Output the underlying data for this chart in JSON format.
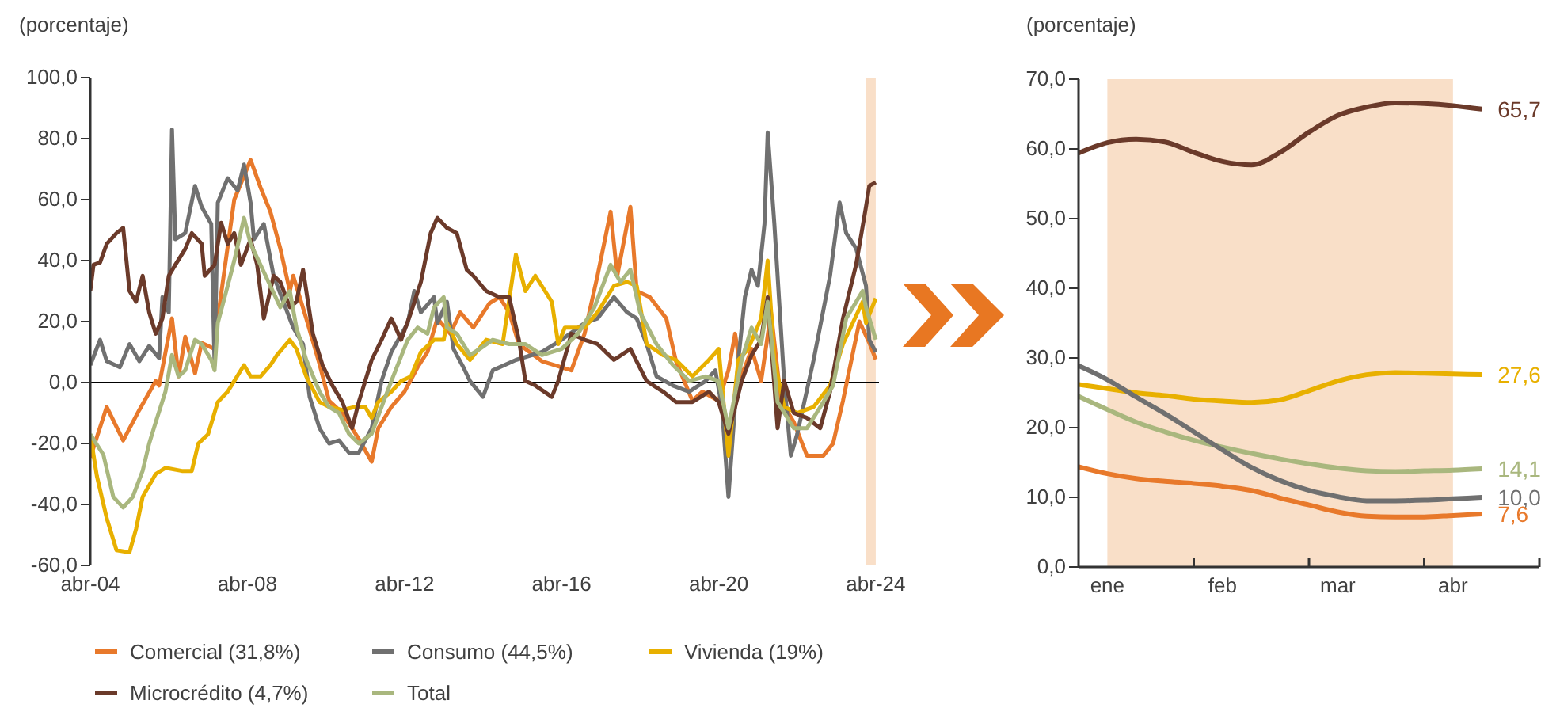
{
  "chart_data": [
    {
      "type": "line",
      "ylabel": "(porcentaje)",
      "xlim": [
        "2004-04",
        "2024-05"
      ],
      "xticks": [
        {
          "value": "2004-04",
          "label": "abr-04"
        },
        {
          "value": "2008-04",
          "label": "abr-08"
        },
        {
          "value": "2012-04",
          "label": "abr-12"
        },
        {
          "value": "2016-04",
          "label": "abr-16"
        },
        {
          "value": "2020-04",
          "label": "abr-20"
        },
        {
          "value": "2024-04",
          "label": "abr-24"
        }
      ],
      "ylim": [
        -60,
        100
      ],
      "yticks": [
        {
          "value": -60,
          "label": "-60,0"
        },
        {
          "value": -40,
          "label": "-40,0"
        },
        {
          "value": -20,
          "label": "-20,0"
        },
        {
          "value": 0,
          "label": "0,0"
        },
        {
          "value": 20,
          "label": "20,0"
        },
        {
          "value": 40,
          "label": "40,0"
        },
        {
          "value": 60,
          "label": "60,0"
        },
        {
          "value": 80,
          "label": "80,0"
        },
        {
          "value": 100,
          "label": "100,0"
        }
      ],
      "grid": false,
      "legend": "bottom",
      "ref_lines": [
        {
          "axis": "y",
          "value": 0,
          "color": "#000000"
        }
      ],
      "bands": [
        {
          "axis": "x",
          "from": "2024-01",
          "to": "2024-04",
          "color": "#f9dfc8"
        }
      ],
      "series": [
        {
          "name": "Comercial (31,8%)",
          "color": "#e8792b",
          "x": [
            "2004-04",
            "2004-09",
            "2005-02",
            "2005-07",
            "2005-12",
            "2006-01",
            "2006-05",
            "2006-07",
            "2006-09",
            "2006-12",
            "2007-02",
            "2007-06",
            "2007-07",
            "2007-09",
            "2007-12",
            "2008-05",
            "2008-08",
            "2008-11",
            "2009-02",
            "2009-05",
            "2009-06",
            "2009-10",
            "2010-02",
            "2010-05",
            "2010-09",
            "2011-02",
            "2011-06",
            "2011-08",
            "2011-12",
            "2012-04",
            "2012-08",
            "2012-11",
            "2013-02",
            "2013-06",
            "2013-09",
            "2014-01",
            "2014-06",
            "2014-09",
            "2014-12",
            "2015-03",
            "2015-10",
            "2016-07",
            "2016-11",
            "2017-03",
            "2017-07",
            "2017-09",
            "2018-01",
            "2018-03",
            "2018-07",
            "2018-12",
            "2019-03",
            "2019-08",
            "2019-11",
            "2020-04",
            "2020-07",
            "2020-09",
            "2020-11",
            "2021-02",
            "2021-05",
            "2021-08",
            "2021-11",
            "2022-03",
            "2022-07",
            "2022-12",
            "2023-03",
            "2023-06",
            "2023-11",
            "2024-02",
            "2024-04"
          ],
          "values": [
            -24.6,
            -8,
            -19,
            -9,
            0.5,
            -1,
            21,
            2,
            15,
            3,
            13,
            11,
            21,
            37,
            60,
            73,
            64,
            56,
            44,
            30,
            35,
            21,
            6,
            -6,
            -10,
            -18.5,
            -26,
            -15,
            -8,
            -3,
            5,
            10,
            21,
            16,
            23,
            18,
            26,
            28,
            23,
            12.6,
            7,
            4,
            16,
            35,
            56,
            35,
            57.6,
            30,
            28,
            21,
            7,
            -6,
            -3,
            -6,
            4,
            16,
            2,
            11,
            0.5,
            23,
            -6,
            -13,
            -24,
            -24,
            -20,
            -6,
            20,
            13,
            7.6
          ]
        },
        {
          "name": "Consumo (44,5%)",
          "color": "#707070",
          "x": [
            "2004-04",
            "2004-07",
            "2004-09",
            "2005-01",
            "2005-04",
            "2005-07",
            "2005-10",
            "2006-01",
            "2006-02",
            "2006-04",
            "2006-05",
            "2006-06",
            "2006-09",
            "2006-12",
            "2007-02",
            "2007-05",
            "2007-06",
            "2007-07",
            "2007-10",
            "2008-01",
            "2008-03",
            "2008-05",
            "2008-06",
            "2008-09",
            "2008-12",
            "2009-03",
            "2009-06",
            "2009-09",
            "2009-11",
            "2010-02",
            "2010-05",
            "2010-08",
            "2010-11",
            "2011-02",
            "2011-06",
            "2011-09",
            "2011-12",
            "2012-05",
            "2012-07",
            "2012-09",
            "2013-01",
            "2013-02",
            "2013-05",
            "2013-07",
            "2013-10",
            "2013-12",
            "2014-04",
            "2014-07",
            "2015-02",
            "2015-10",
            "2016-04",
            "2016-11",
            "2017-03",
            "2017-08",
            "2017-12",
            "2018-03",
            "2018-06",
            "2018-09",
            "2019-02",
            "2019-07",
            "2019-12",
            "2020-03",
            "2020-05",
            "2020-07",
            "2020-10",
            "2020-12",
            "2021-02",
            "2021-04",
            "2021-06",
            "2021-07",
            "2021-09",
            "2021-12",
            "2022-02",
            "2022-04",
            "2022-09",
            "2023-02",
            "2023-05",
            "2023-07",
            "2023-10",
            "2024-01",
            "2024-02",
            "2024-04"
          ],
          "values": [
            5.7,
            14,
            7,
            5,
            12.6,
            7,
            12,
            8,
            28,
            23,
            83,
            47,
            49,
            64.5,
            57.6,
            52,
            5.7,
            59,
            67,
            63,
            71.5,
            59,
            47,
            52,
            35,
            26.5,
            18,
            12.6,
            -4.7,
            -15,
            -20,
            -19,
            -23,
            -23,
            -15,
            0.5,
            10,
            19.5,
            30,
            23,
            28,
            19.5,
            26.5,
            11,
            5,
            0.5,
            -4.7,
            4,
            7.4,
            10,
            14,
            19.5,
            21,
            28,
            23,
            21,
            12.6,
            2,
            -1,
            -3,
            0.5,
            4,
            -8,
            -37.5,
            7.4,
            28,
            37,
            31.7,
            52,
            82,
            52,
            0.5,
            -24,
            -17,
            7.4,
            35,
            59,
            49,
            44,
            31.7,
            14,
            10
          ]
        },
        {
          "name": "Vivienda (19%)",
          "color": "#e8b000",
          "x": [
            "2004-04",
            "2004-06",
            "2004-09",
            "2004-12",
            "2005-04",
            "2005-06",
            "2005-08",
            "2005-12",
            "2006-03",
            "2006-08",
            "2006-11",
            "2007-01",
            "2007-04",
            "2007-07",
            "2007-10",
            "2007-12",
            "2008-03",
            "2008-05",
            "2008-08",
            "2008-11",
            "2009-01",
            "2009-05",
            "2009-07",
            "2009-10",
            "2010-02",
            "2010-05",
            "2010-09",
            "2011-01",
            "2011-04",
            "2011-06",
            "2011-08",
            "2011-12",
            "2012-03",
            "2012-06",
            "2012-09",
            "2013-01",
            "2013-04",
            "2013-05",
            "2013-08",
            "2013-12",
            "2014-05",
            "2014-10",
            "2015-02",
            "2015-05",
            "2015-08",
            "2016-01",
            "2016-03",
            "2016-05",
            "2016-11",
            "2017-03",
            "2017-08",
            "2017-12",
            "2018-03",
            "2018-06",
            "2018-11",
            "2019-03",
            "2019-08",
            "2020-01",
            "2020-04",
            "2020-07",
            "2020-10",
            "2021-01",
            "2021-05",
            "2021-07",
            "2021-09",
            "2021-12",
            "2022-04",
            "2022-09",
            "2023-02",
            "2023-06",
            "2023-12",
            "2024-01",
            "2024-04"
          ],
          "values": [
            -17,
            -30.6,
            -44.5,
            -55,
            -55.7,
            -48,
            -37.5,
            -30,
            -28,
            -29,
            -29,
            -20,
            -17,
            -6.4,
            -3,
            0.5,
            5.7,
            2,
            2,
            5.7,
            9,
            14,
            11,
            2,
            -6.4,
            -8,
            -9,
            -8,
            -8,
            -11.6,
            -6.4,
            -3,
            0.5,
            2,
            10,
            14,
            14,
            19.5,
            12.6,
            7.4,
            14,
            12.6,
            42,
            30,
            35,
            26.5,
            12.6,
            18,
            18,
            23,
            31.7,
            33,
            31.7,
            12.6,
            9,
            7.4,
            2,
            7.4,
            11,
            -24,
            7.4,
            11,
            21,
            40,
            7.4,
            -8,
            -10,
            -8,
            -1,
            12.6,
            26.5,
            19.5,
            27.6
          ]
        },
        {
          "name": "Microcrédito (4,7%)",
          "color": "#6b3a2a",
          "x": [
            "2004-04",
            "2004-05",
            "2004-07",
            "2004-09",
            "2004-12",
            "2005-02",
            "2005-04",
            "2005-06",
            "2005-08",
            "2005-10",
            "2005-12",
            "2006-02",
            "2006-04",
            "2006-06",
            "2006-09",
            "2006-11",
            "2007-02",
            "2007-03",
            "2007-06",
            "2007-08",
            "2007-10",
            "2007-12",
            "2008-02",
            "2008-05",
            "2008-07",
            "2008-09",
            "2008-12",
            "2009-02",
            "2009-05",
            "2009-07",
            "2009-09",
            "2009-12",
            "2010-03",
            "2010-06",
            "2010-09",
            "2010-12",
            "2011-02",
            "2011-06",
            "2011-09",
            "2011-12",
            "2012-03",
            "2012-06",
            "2012-09",
            "2012-12",
            "2013-02",
            "2013-05",
            "2013-08",
            "2013-11",
            "2014-01",
            "2014-05",
            "2014-09",
            "2014-12",
            "2015-03",
            "2015-05",
            "2015-08",
            "2016-01",
            "2016-03",
            "2016-07",
            "2016-11",
            "2017-03",
            "2017-08",
            "2018-01",
            "2018-06",
            "2018-11",
            "2019-03",
            "2019-08",
            "2020-01",
            "2020-04",
            "2020-07",
            "2020-11",
            "2021-02",
            "2021-05",
            "2021-07",
            "2021-10",
            "2021-12",
            "2022-03",
            "2022-07",
            "2022-11",
            "2023-02",
            "2023-06",
            "2023-10",
            "2024-01",
            "2024-02",
            "2024-04"
          ],
          "values": [
            30,
            38.6,
            39.4,
            45.5,
            49,
            50.7,
            30,
            26.5,
            35,
            23,
            16,
            21,
            35,
            38.6,
            43.8,
            49,
            45.5,
            35,
            38.6,
            52.4,
            45.5,
            49,
            38.6,
            47,
            38.6,
            21,
            35,
            33,
            24.7,
            26.5,
            37,
            16,
            5.7,
            -1,
            -6.4,
            -15,
            -6.4,
            7.4,
            14,
            21,
            14,
            23,
            33,
            49,
            54,
            50.7,
            49,
            37,
            35,
            30,
            28,
            28,
            14,
            0.5,
            -1,
            -4.7,
            0.5,
            16,
            14,
            12.6,
            7.4,
            11,
            0.5,
            -3,
            -6.4,
            -6.4,
            -3,
            -6.4,
            -16.8,
            0.5,
            9,
            14,
            28,
            -15,
            0.5,
            -10,
            -11.6,
            -15,
            -3,
            21,
            38.6,
            57.6,
            64.5,
            65.7
          ]
        },
        {
          "name": "Total",
          "color": "#a9b77e",
          "x": [
            "2004-04",
            "2004-08",
            "2004-11",
            "2005-02",
            "2005-05",
            "2005-08",
            "2005-10",
            "2005-12",
            "2006-03",
            "2006-05",
            "2006-07",
            "2006-09",
            "2006-12",
            "2007-02",
            "2007-05",
            "2007-06",
            "2007-07",
            "2007-10",
            "2007-12",
            "2008-03",
            "2008-05",
            "2008-08",
            "2008-11",
            "2009-02",
            "2009-05",
            "2009-07",
            "2009-10",
            "2010-02",
            "2010-05",
            "2010-08",
            "2010-11",
            "2011-02",
            "2011-06",
            "2011-09",
            "2011-12",
            "2012-05",
            "2012-08",
            "2012-11",
            "2013-01",
            "2013-04",
            "2013-05",
            "2013-08",
            "2013-12",
            "2014-03",
            "2014-07",
            "2014-12",
            "2015-05",
            "2015-10",
            "2016-04",
            "2016-09",
            "2017-02",
            "2017-07",
            "2017-10",
            "2018-01",
            "2018-04",
            "2018-09",
            "2019-02",
            "2019-07",
            "2019-12",
            "2020-04",
            "2020-07",
            "2020-11",
            "2021-02",
            "2021-05",
            "2021-07",
            "2021-10",
            "2022-03",
            "2022-07",
            "2022-12",
            "2023-03",
            "2023-07",
            "2023-12",
            "2024-01",
            "2024-04"
          ],
          "values": [
            -17,
            -23.7,
            -37.5,
            -41,
            -37.5,
            -29,
            -20,
            -13,
            -3,
            9,
            2,
            4,
            14,
            12.6,
            7.4,
            4,
            19.5,
            31.7,
            40,
            54,
            45.5,
            38.6,
            31.7,
            24.7,
            30,
            18,
            7.4,
            -3,
            -8,
            -10,
            -16.8,
            -20,
            -16.8,
            -8,
            0.5,
            14,
            18,
            16,
            24.7,
            28,
            18,
            16,
            9,
            11,
            14,
            12.6,
            12.6,
            9,
            11,
            16,
            24.7,
            38.6,
            33,
            37,
            23,
            12.6,
            5.7,
            0.5,
            2,
            0.5,
            -15,
            7.4,
            18,
            12.6,
            26.5,
            -6.4,
            -15,
            -15,
            -6.4,
            -1,
            21,
            30,
            24.7,
            14.1
          ]
        }
      ]
    },
    {
      "type": "line",
      "ylabel": "(porcentaje)",
      "categories": [
        null,
        "ene",
        null,
        null,
        null,
        "feb",
        null,
        null,
        null,
        "mar",
        null,
        null,
        null,
        "abr",
        null
      ],
      "ylim": [
        0,
        70
      ],
      "yticks": [
        {
          "value": 0,
          "label": "0,0"
        },
        {
          "value": 10,
          "label": "10,0"
        },
        {
          "value": 20,
          "label": "20,0"
        },
        {
          "value": 30,
          "label": "30,0"
        },
        {
          "value": 40,
          "label": "40,0"
        },
        {
          "value": 50,
          "label": "50,0"
        },
        {
          "value": 60,
          "label": "60,0"
        },
        {
          "value": 70,
          "label": "70,0"
        }
      ],
      "grid": false,
      "bands": [
        {
          "axis": "x",
          "from": "ene",
          "to": "abr",
          "color": "#f9dfc8"
        }
      ],
      "series": [
        {
          "color": "#6b3a2a",
          "values": [
            59.4,
            60.9,
            61.4,
            61.0,
            59.5,
            58.2,
            57.7,
            59.5,
            62.4,
            64.8,
            66.0,
            66.6,
            66.5,
            66.2,
            65.7
          ],
          "value_labels": [
            null,
            null,
            null,
            null,
            null,
            null,
            null,
            null,
            null,
            null,
            null,
            null,
            null,
            null,
            "65,7"
          ]
        },
        {
          "color": "#e8b000",
          "values": [
            26.2,
            25.6,
            25.0,
            24.6,
            24.1,
            23.8,
            23.6,
            24.0,
            25.3,
            26.7,
            27.6,
            27.9,
            27.8,
            27.7,
            27.6
          ],
          "value_labels": [
            null,
            null,
            null,
            null,
            null,
            null,
            null,
            null,
            null,
            null,
            null,
            null,
            null,
            null,
            "27,6"
          ]
        },
        {
          "color": "#a9b77e",
          "values": [
            24.5,
            22.6,
            20.8,
            19.4,
            18.2,
            17.2,
            16.3,
            15.5,
            14.8,
            14.2,
            13.8,
            13.7,
            13.8,
            13.9,
            14.1
          ],
          "value_labels": [
            null,
            null,
            null,
            null,
            null,
            null,
            null,
            null,
            null,
            null,
            null,
            null,
            null,
            null,
            "14,1"
          ]
        },
        {
          "color": "#707070",
          "values": [
            28.9,
            26.9,
            24.4,
            22.0,
            19.4,
            16.8,
            14.3,
            12.4,
            11.0,
            10.1,
            9.5,
            9.5,
            9.6,
            9.8,
            10.0
          ],
          "value_labels": [
            null,
            null,
            null,
            null,
            null,
            null,
            null,
            null,
            null,
            null,
            null,
            null,
            null,
            null,
            "10,0"
          ]
        },
        {
          "color": "#e8792b",
          "values": [
            14.4,
            13.4,
            12.7,
            12.3,
            12.0,
            11.6,
            11.0,
            9.9,
            8.9,
            7.9,
            7.3,
            7.2,
            7.2,
            7.4,
            7.6
          ],
          "value_labels": [
            null,
            null,
            null,
            null,
            null,
            null,
            null,
            null,
            null,
            null,
            null,
            null,
            null,
            null,
            "7,6"
          ]
        }
      ]
    }
  ]
}
